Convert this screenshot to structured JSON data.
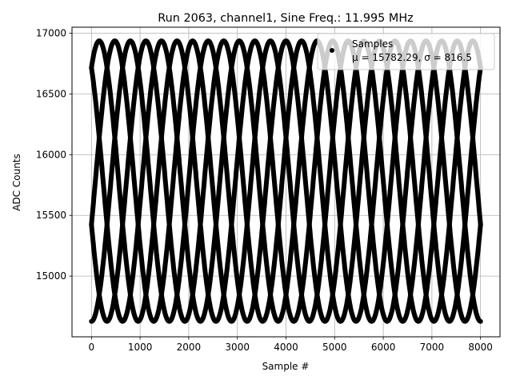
{
  "chart_data": {
    "type": "scatter",
    "title": "Run 2063, channel1, Sine Freq.: 11.995 MHz",
    "xlabel": "Sample #",
    "ylabel": "ADC Counts",
    "xlim": [
      -400,
      8400
    ],
    "ylim": [
      14500,
      17050
    ],
    "xticks": [
      0,
      1000,
      2000,
      3000,
      4000,
      5000,
      6000,
      7000,
      8000
    ],
    "yticks": [
      15000,
      15500,
      16000,
      16500,
      17000
    ],
    "grid": true,
    "legend": {
      "placement": "top-right",
      "entries": [
        "Samples",
        "μ = 15782.29, σ = 816.5"
      ]
    },
    "series": [
      {
        "name": "Samples",
        "color": "#000000",
        "marker": "circle",
        "x_range": [
          0,
          8000
        ],
        "model": "y = mean + amplitude * sin(phase + k * dphi), one of 5 phases per sample index",
        "mean": 15782.29,
        "amplitude": 1155,
        "phases": [
          [
            -1.5708,
            0.9425,
            3.4558,
            5.969,
            2.1991
          ]
        ],
        "phase_set_step_deg": 144,
        "envelope_period_samples": 1600
      }
    ]
  }
}
